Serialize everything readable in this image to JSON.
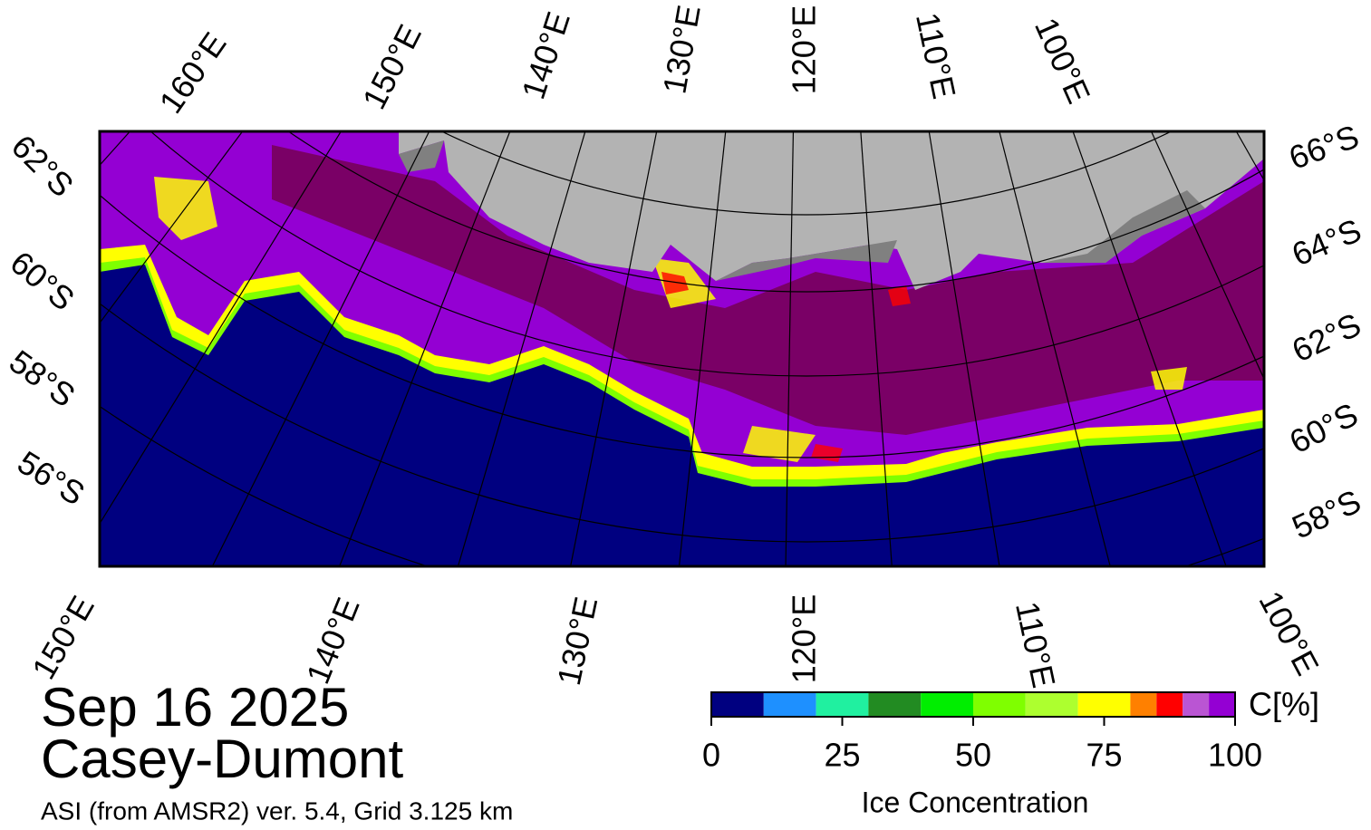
{
  "title": "Sep 16 2025",
  "region": "Casey-Dumont",
  "source": "ASI (from AMSR2) ver. 5.4,  Grid 3.125 km",
  "map": {
    "top_labels": [
      "160°E",
      "150°E",
      "140°E",
      "130°E",
      "120°E",
      "110°E",
      "100°E"
    ],
    "bottom_labels": [
      "150°E",
      "140°E",
      "130°E",
      "120°E",
      "110°E",
      "100°E"
    ],
    "left_labels": [
      "62°S",
      "60°S",
      "58°S",
      "56°S"
    ],
    "right_labels": [
      "66°S",
      "64°S",
      "62°S",
      "60°S",
      "58°S"
    ]
  },
  "colorbar": {
    "label": "Ice Concentration",
    "unit": "C[%]",
    "range": [
      0,
      100
    ],
    "ticks": [
      0,
      25,
      50,
      75,
      100
    ],
    "bins": [
      0,
      10,
      20,
      30,
      40,
      50,
      60,
      70,
      80,
      85,
      90,
      95,
      100
    ],
    "colors": [
      "#000080",
      "#1e90ff",
      "#20f0a0",
      "#228b22",
      "#00ee00",
      "#7fff00",
      "#adff2f",
      "#ffff00",
      "#ff8000",
      "#ff0000",
      "#ba55d3",
      "#9400d3"
    ]
  }
}
